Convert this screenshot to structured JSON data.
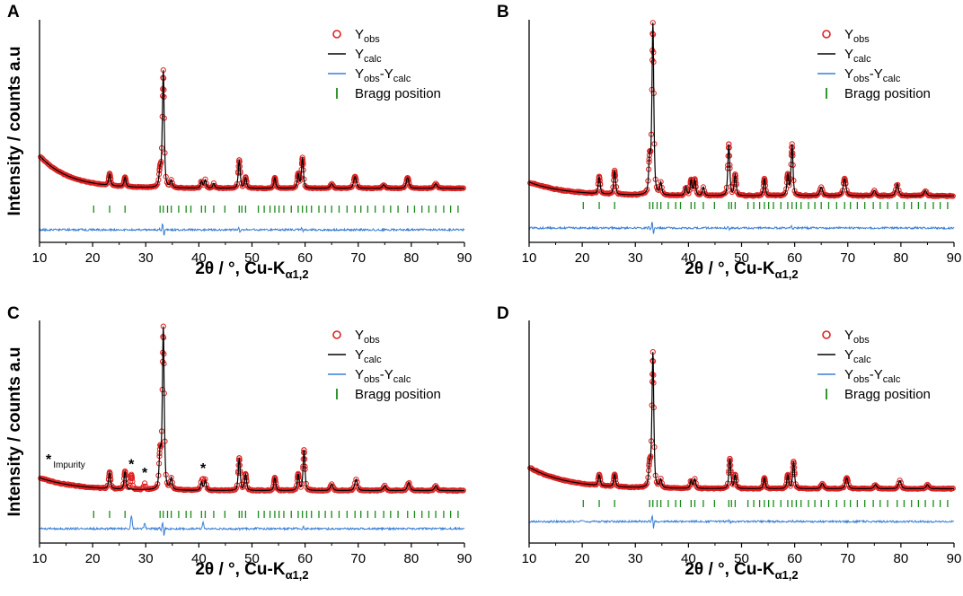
{
  "colors": {
    "observed": "#e02020",
    "calculated": "#000000",
    "difference": "#3a7fd5",
    "bragg": "#1a8a1a"
  },
  "chart_data": [
    {
      "type": "line",
      "panel": "A",
      "xlabel_main": "2θ / °, Cu-K",
      "xlabel_sub": "α1,2",
      "ylabel": "Intensity / counts a.u",
      "xlim": [
        10,
        90
      ],
      "x_ticks": [
        "10",
        "20",
        "30",
        "40",
        "50",
        "60",
        "70",
        "80",
        "90"
      ],
      "legend_position": "top-right",
      "legend": [
        {
          "base": "Y",
          "sub": "obs",
          "base2": "",
          "sub2": ""
        },
        {
          "base": "Y",
          "sub": "calc",
          "base2": "",
          "sub2": ""
        },
        {
          "base": "Y",
          "sub": "obs",
          "base2": "-Y",
          "sub2": "calc"
        },
        {
          "base": "Bragg position",
          "sub": "",
          "base2": "",
          "sub2": ""
        }
      ],
      "background": {
        "start": 0.32,
        "decay": 5.5,
        "floor": 0.04
      },
      "peaks": [
        [
          23.2,
          0.1
        ],
        [
          26.1,
          0.08
        ],
        [
          32.7,
          0.14
        ],
        [
          33.3,
          1.0
        ],
        [
          34.8,
          0.06
        ],
        [
          40.5,
          0.06
        ],
        [
          41.2,
          0.07
        ],
        [
          42.8,
          0.04
        ],
        [
          47.6,
          0.24
        ],
        [
          48.8,
          0.09
        ],
        [
          54.3,
          0.09
        ],
        [
          58.7,
          0.12
        ],
        [
          59.5,
          0.26
        ],
        [
          65.0,
          0.04
        ],
        [
          69.4,
          0.1
        ],
        [
          74.8,
          0.03
        ],
        [
          79.3,
          0.09
        ],
        [
          84.6,
          0.04
        ]
      ],
      "bragg_positions": [
        20.2,
        23.2,
        26.1,
        32.7,
        33.3,
        34.1,
        34.8,
        36.2,
        37.6,
        38.5,
        40.5,
        41.2,
        42.8,
        44.9,
        47.6,
        48.1,
        48.8,
        51.2,
        52.3,
        53.4,
        54.3,
        55.1,
        56.0,
        57.4,
        58.7,
        59.5,
        60.3,
        61.2,
        62.6,
        63.8,
        65.0,
        66.4,
        67.9,
        69.4,
        70.5,
        71.8,
        73.2,
        74.8,
        76.1,
        77.5,
        79.3,
        80.6,
        82.0,
        83.3,
        84.6,
        86.1,
        87.4,
        88.8
      ],
      "impurity_peaks": [],
      "annotations": []
    },
    {
      "type": "line",
      "panel": "B",
      "xlabel_main": "2θ / °, Cu-K",
      "xlabel_sub": "α1,2",
      "ylabel": "",
      "xlim": [
        10,
        90
      ],
      "x_ticks": [
        "10",
        "20",
        "30",
        "40",
        "50",
        "60",
        "70",
        "80",
        "90"
      ],
      "legend_position": "top-right",
      "legend": [
        {
          "base": "Y",
          "sub": "obs",
          "base2": "",
          "sub2": ""
        },
        {
          "base": "Y",
          "sub": "calc",
          "base2": "",
          "sub2": ""
        },
        {
          "base": "Y",
          "sub": "obs",
          "base2": "-Y",
          "sub2": "calc"
        },
        {
          "base": "Bragg position",
          "sub": "",
          "base2": "",
          "sub2": ""
        }
      ],
      "background": {
        "start": 0.1,
        "decay": 7.0,
        "floor": 0.02
      },
      "peaks": [
        [
          23.2,
          0.1
        ],
        [
          26.1,
          0.14
        ],
        [
          32.7,
          0.2
        ],
        [
          33.3,
          1.0
        ],
        [
          34.8,
          0.07
        ],
        [
          39.5,
          0.05
        ],
        [
          40.5,
          0.09
        ],
        [
          41.2,
          0.09
        ],
        [
          42.8,
          0.05
        ],
        [
          47.6,
          0.3
        ],
        [
          48.8,
          0.12
        ],
        [
          54.3,
          0.1
        ],
        [
          58.7,
          0.12
        ],
        [
          59.5,
          0.3
        ],
        [
          65.0,
          0.05
        ],
        [
          69.4,
          0.1
        ],
        [
          75.0,
          0.03
        ],
        [
          79.3,
          0.07
        ],
        [
          84.6,
          0.03
        ]
      ],
      "bragg_positions": [
        20.2,
        23.2,
        26.1,
        32.7,
        33.3,
        34.1,
        34.8,
        36.2,
        37.6,
        38.5,
        40.5,
        41.2,
        42.8,
        44.9,
        47.6,
        48.1,
        48.8,
        51.2,
        52.3,
        53.4,
        54.3,
        55.1,
        56.0,
        57.4,
        58.7,
        59.5,
        60.3,
        61.2,
        62.6,
        63.8,
        65.0,
        66.4,
        67.9,
        69.4,
        70.5,
        71.8,
        73.2,
        74.8,
        76.1,
        77.5,
        79.3,
        80.6,
        82.0,
        83.3,
        84.6,
        86.1,
        87.4,
        88.8
      ],
      "impurity_peaks": [],
      "annotations": []
    },
    {
      "type": "line",
      "panel": "C",
      "xlabel_main": "2θ / °, Cu-K",
      "xlabel_sub": "α1,2",
      "ylabel": "Intensity / counts a.u",
      "xlim": [
        10,
        90
      ],
      "x_ticks": [
        "10",
        "20",
        "30",
        "40",
        "50",
        "60",
        "70",
        "80",
        "90"
      ],
      "legend_position": "top-right",
      "legend": [
        {
          "base": "Y",
          "sub": "obs",
          "base2": "",
          "sub2": ""
        },
        {
          "base": "Y",
          "sub": "calc",
          "base2": "",
          "sub2": ""
        },
        {
          "base": "Y",
          "sub": "obs",
          "base2": "-Y",
          "sub2": "calc"
        },
        {
          "base": "Bragg position",
          "sub": "",
          "base2": "",
          "sub2": ""
        }
      ],
      "background": {
        "start": 0.11,
        "decay": 7.0,
        "floor": 0.03
      },
      "peaks": [
        [
          23.2,
          0.1
        ],
        [
          26.1,
          0.11
        ],
        [
          32.7,
          0.22
        ],
        [
          33.3,
          1.0
        ],
        [
          34.8,
          0.07
        ],
        [
          40.5,
          0.05
        ],
        [
          41.2,
          0.06
        ],
        [
          47.6,
          0.2
        ],
        [
          48.8,
          0.1
        ],
        [
          54.3,
          0.08
        ],
        [
          58.7,
          0.1
        ],
        [
          59.8,
          0.25
        ],
        [
          65.0,
          0.04
        ],
        [
          69.6,
          0.07
        ],
        [
          75.0,
          0.03
        ],
        [
          79.5,
          0.05
        ],
        [
          84.6,
          0.03
        ]
      ],
      "bragg_positions": [
        20.2,
        23.2,
        26.1,
        32.7,
        33.3,
        34.1,
        34.8,
        36.2,
        37.6,
        38.5,
        40.5,
        41.2,
        42.8,
        44.9,
        47.6,
        48.1,
        48.8,
        51.2,
        52.3,
        53.4,
        54.3,
        55.1,
        56.0,
        57.4,
        58.7,
        59.5,
        60.3,
        61.2,
        62.6,
        63.8,
        65.0,
        66.4,
        67.9,
        69.4,
        70.5,
        71.8,
        73.2,
        74.8,
        76.1,
        77.5,
        79.3,
        80.6,
        82.0,
        83.3,
        84.6,
        86.1,
        87.4,
        88.8
      ],
      "impurity_peaks": [
        [
          27.3,
          0.09
        ],
        [
          29.8,
          0.04
        ],
        [
          40.8,
          0.05
        ]
      ],
      "annotations": [
        {
          "text": "*",
          "x": 27.3
        },
        {
          "text": "*",
          "x": 29.8
        },
        {
          "text": "*",
          "x": 40.8
        }
      ],
      "impurity_label": {
        "star": "*",
        "text": "Impurity"
      }
    },
    {
      "type": "line",
      "panel": "D",
      "xlabel_main": "2θ / °, Cu-K",
      "xlabel_sub": "α1,2",
      "ylabel": "",
      "xlim": [
        10,
        90
      ],
      "x_ticks": [
        "10",
        "20",
        "30",
        "40",
        "50",
        "60",
        "70",
        "80",
        "90"
      ],
      "legend_position": "top-right",
      "legend": [
        {
          "base": "Y",
          "sub": "obs",
          "base2": "",
          "sub2": ""
        },
        {
          "base": "Y",
          "sub": "calc",
          "base2": "",
          "sub2": ""
        },
        {
          "base": "Y",
          "sub": "obs",
          "base2": "-Y",
          "sub2": "calc"
        },
        {
          "base": "Bragg position",
          "sub": "",
          "base2": "",
          "sub2": ""
        }
      ],
      "background": {
        "start": 0.19,
        "decay": 7.0,
        "floor": 0.03
      },
      "peaks": [
        [
          23.2,
          0.08
        ],
        [
          26.1,
          0.09
        ],
        [
          32.7,
          0.16
        ],
        [
          33.3,
          1.0
        ],
        [
          34.8,
          0.06
        ],
        [
          40.5,
          0.06
        ],
        [
          41.2,
          0.07
        ],
        [
          47.8,
          0.22
        ],
        [
          48.8,
          0.1
        ],
        [
          54.3,
          0.08
        ],
        [
          58.7,
          0.1
        ],
        [
          59.8,
          0.2
        ],
        [
          65.2,
          0.04
        ],
        [
          69.8,
          0.08
        ],
        [
          75.2,
          0.03
        ],
        [
          79.8,
          0.06
        ],
        [
          85.0,
          0.03
        ]
      ],
      "bragg_positions": [
        20.2,
        23.2,
        26.1,
        32.7,
        33.3,
        34.1,
        34.8,
        36.2,
        37.6,
        38.5,
        40.5,
        41.2,
        42.8,
        44.9,
        47.6,
        48.1,
        48.8,
        51.2,
        52.3,
        53.4,
        54.3,
        55.1,
        56.0,
        57.4,
        58.7,
        59.5,
        60.3,
        61.2,
        62.6,
        63.8,
        65.0,
        66.4,
        67.9,
        69.4,
        70.5,
        71.8,
        73.2,
        74.8,
        76.1,
        77.5,
        79.3,
        80.6,
        82.0,
        83.3,
        84.6,
        86.1,
        87.4,
        88.8
      ],
      "impurity_peaks": [],
      "annotations": []
    }
  ]
}
